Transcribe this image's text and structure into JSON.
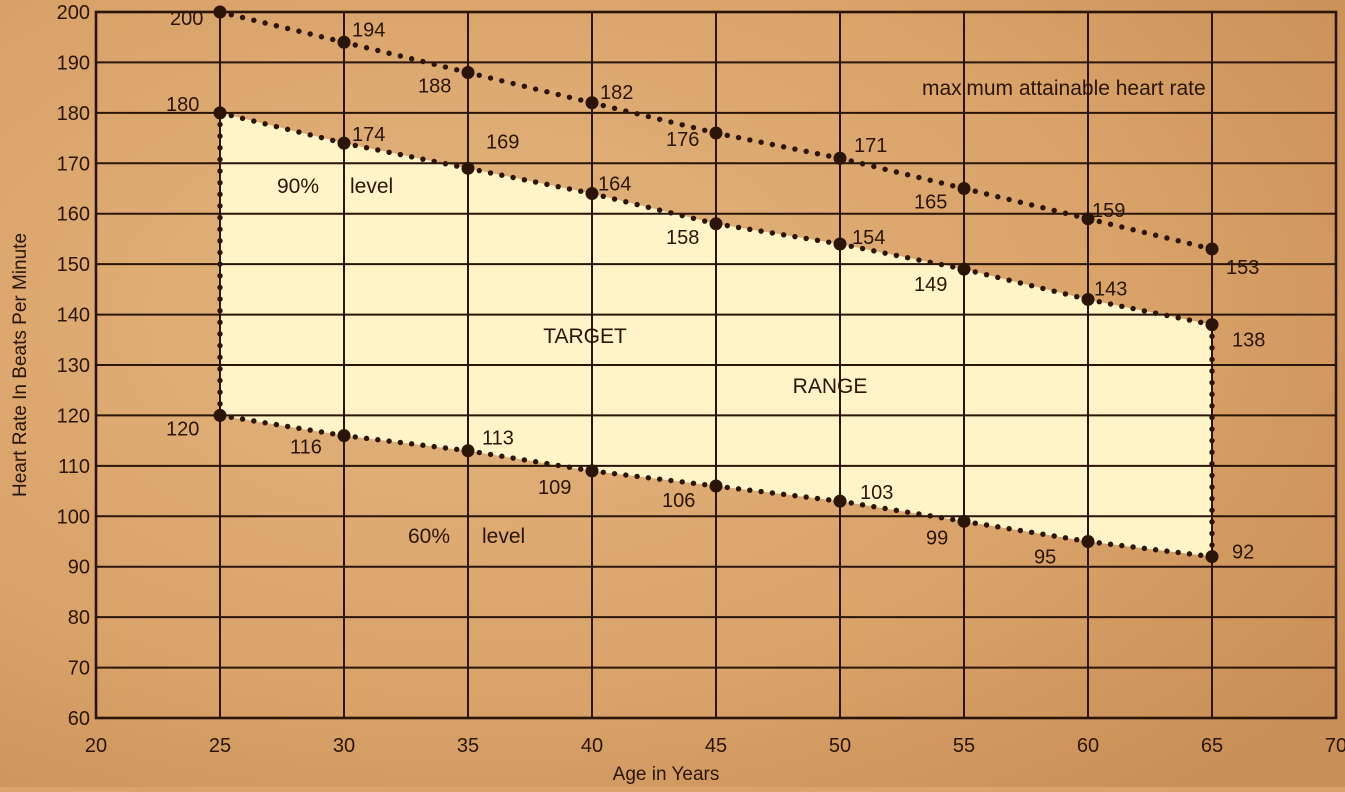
{
  "chart_data": {
    "type": "line",
    "xlabel": "Age in Years",
    "ylabel": "Heart Rate In Beats Per Minute",
    "xlim": [
      20,
      70
    ],
    "ylim": [
      60,
      200
    ],
    "x_ticks": [
      20,
      25,
      30,
      35,
      40,
      45,
      50,
      55,
      60,
      65,
      70
    ],
    "y_ticks": [
      200,
      190,
      180,
      170,
      160,
      150,
      140,
      130,
      120,
      110,
      100,
      90,
      80,
      70,
      60
    ],
    "grid": true,
    "x": [
      25,
      30,
      35,
      40,
      45,
      50,
      55,
      60,
      65
    ],
    "series": [
      {
        "name": "maximum attainable heart rate",
        "values": [
          200,
          194,
          188,
          182,
          176,
          171,
          165,
          159,
          153
        ]
      },
      {
        "name": "90% level",
        "values": [
          180,
          174,
          169,
          164,
          158,
          154,
          149,
          143,
          138
        ]
      },
      {
        "name": "60% level",
        "values": [
          120,
          116,
          113,
          109,
          106,
          103,
          99,
          95,
          92
        ]
      }
    ],
    "series_label_words": [
      {
        "pct": "",
        "word": "maximum attainable heart rate"
      },
      {
        "pct": "90%",
        "word": "level"
      },
      {
        "pct": "60%",
        "word": "level"
      }
    ],
    "region_labels": [
      "TARGET",
      "RANGE"
    ],
    "colors": {
      "background": "#d9a36a",
      "target_fill": "#fff4c8",
      "ink": "#2a1508"
    }
  }
}
